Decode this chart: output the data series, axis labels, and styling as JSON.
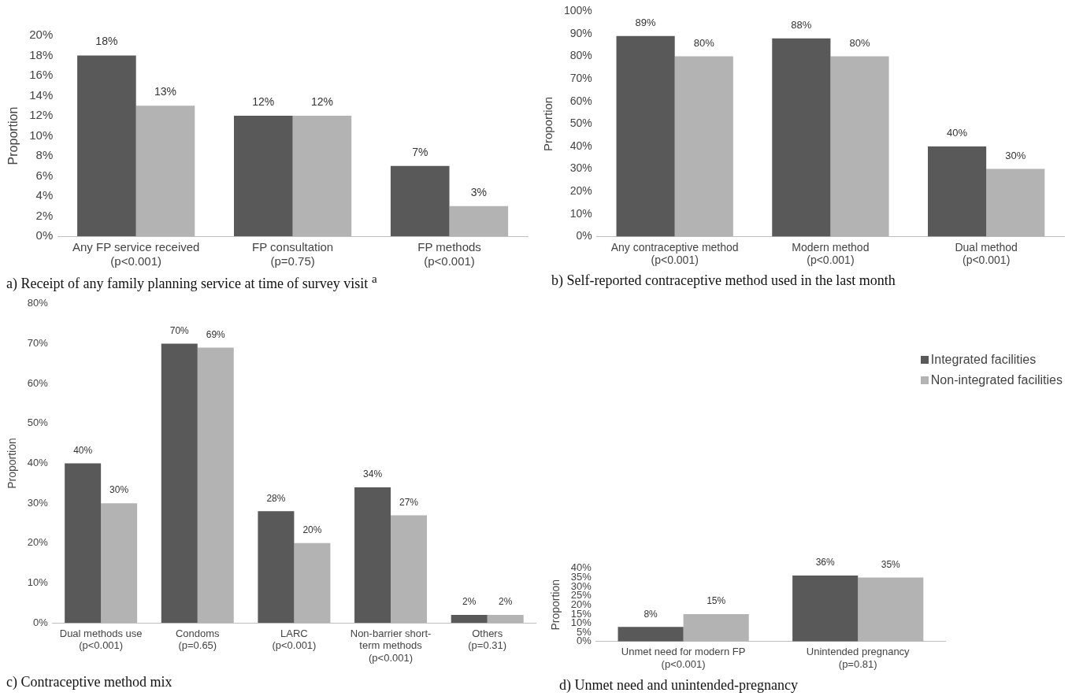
{
  "chart_data": [
    {
      "type": "bar",
      "title": "a) Receipt of any family planning service at time of survey visit $^{a}$",
      "ylabel": "Proportion",
      "categories": [
        "Any FP service received\n(p<0.001)",
        "FP consultation\n(p=0.75)",
        "FP methods\n(p<0.001)"
      ],
      "series": [
        {
          "color": "#595959",
          "values": [
            18,
            12,
            7
          ],
          "value_labels": [
            "18%",
            "12%",
            "7%"
          ]
        },
        {
          "color": "#b3b3b3",
          "values": [
            13,
            12,
            3
          ],
          "value_labels": [
            "13%",
            "12%",
            "3%"
          ]
        }
      ],
      "ylim": [
        0,
        20
      ],
      "yticks": [
        {
          "value": 0,
          "label": "0%"
        },
        {
          "value": 2,
          "label": "2%"
        },
        {
          "value": 4,
          "label": "4%"
        },
        {
          "value": 6,
          "label": "6%"
        },
        {
          "value": 8,
          "label": "8%"
        },
        {
          "value": 10,
          "label": "10%"
        },
        {
          "value": 12,
          "label": "12%"
        },
        {
          "value": 14,
          "label": "14%"
        },
        {
          "value": 16,
          "label": "16%"
        },
        {
          "value": 18,
          "label": "18%"
        },
        {
          "value": 20,
          "label": "20%"
        }
      ],
      "grid": false
    },
    {
      "type": "bar",
      "title": "b) Self-reported contraceptive method used in the last month",
      "ylabel": "Proportion",
      "categories": [
        "Any contraceptive method\n(p<0.001)",
        "Modern method\n(p<0.001)",
        "Dual method\n(p<0.001)"
      ],
      "series": [
        {
          "color": "#595959",
          "values": [
            89,
            88,
            40
          ],
          "value_labels": [
            "89%",
            "88%",
            "40%"
          ]
        },
        {
          "color": "#b3b3b3",
          "values": [
            80,
            80,
            30
          ],
          "value_labels": [
            "80%",
            "80%",
            "30%"
          ]
        }
      ],
      "ylim": [
        0,
        100
      ],
      "yticks": [
        {
          "value": 0,
          "label": "0%"
        },
        {
          "value": 10,
          "label": "10%"
        },
        {
          "value": 20,
          "label": "20%"
        },
        {
          "value": 30,
          "label": "30%"
        },
        {
          "value": 40,
          "label": "40%"
        },
        {
          "value": 50,
          "label": "50%"
        },
        {
          "value": 60,
          "label": "60%"
        },
        {
          "value": 70,
          "label": "70%"
        },
        {
          "value": 80,
          "label": "80%"
        },
        {
          "value": 90,
          "label": "90%"
        },
        {
          "value": 100,
          "label": "100%"
        }
      ],
      "grid": false
    },
    {
      "type": "bar",
      "title": "c) Contraceptive method mix",
      "ylabel": "Proportion",
      "categories": [
        "Dual methods use\n(p<0.001)",
        "Condoms\n(p=0.65)",
        "LARC\n(p<0.001)",
        "Non-barrier short-\nterm methods\n(p<0.001)",
        "Others\n(p=0.31)"
      ],
      "series": [
        {
          "color": "#595959",
          "values": [
            40,
            70,
            28,
            34,
            2
          ],
          "value_labels": [
            "40%",
            "70%",
            "28%",
            "34%",
            "2%"
          ]
        },
        {
          "color": "#b3b3b3",
          "values": [
            30,
            69,
            20,
            27,
            2
          ],
          "value_labels": [
            "30%",
            "69%",
            "20%",
            "27%",
            "2%"
          ]
        }
      ],
      "ylim": [
        0,
        80
      ],
      "yticks": [
        {
          "value": 0,
          "label": "0%"
        },
        {
          "value": 10,
          "label": "10%"
        },
        {
          "value": 20,
          "label": "20%"
        },
        {
          "value": 30,
          "label": "30%"
        },
        {
          "value": 40,
          "label": "40%"
        },
        {
          "value": 50,
          "label": "50%"
        },
        {
          "value": 60,
          "label": "60%"
        },
        {
          "value": 70,
          "label": "70%"
        },
        {
          "value": 80,
          "label": "80%"
        }
      ],
      "grid": false
    },
    {
      "type": "bar",
      "title": "d) Unmet need and unintended-pregnancy",
      "ylabel": "Proportion",
      "categories": [
        "Unmet need for modern FP\n(p<0.001)",
        "Unintended pregnancy\n(p=0.81)"
      ],
      "series": [
        {
          "name": "Integrated facilities",
          "color": "#595959",
          "values": [
            8,
            36
          ],
          "value_labels": [
            "8%",
            "36%"
          ]
        },
        {
          "name": "Non-integrated facilities",
          "color": "#b3b3b3",
          "values": [
            15,
            35
          ],
          "value_labels": [
            "15%",
            "35%"
          ]
        }
      ],
      "ylim": [
        0,
        40
      ],
      "yticks": [
        {
          "value": 0,
          "label": "0%"
        },
        {
          "value": 5,
          "label": "5%"
        },
        {
          "value": 10,
          "label": "10%"
        },
        {
          "value": 15,
          "label": "15%"
        },
        {
          "value": 20,
          "label": "20%"
        },
        {
          "value": 25,
          "label": "25%"
        },
        {
          "value": 30,
          "label": "30%"
        },
        {
          "value": 35,
          "label": "35%"
        },
        {
          "value": 40,
          "label": "40%"
        }
      ],
      "grid": false,
      "legend": "top right"
    }
  ]
}
